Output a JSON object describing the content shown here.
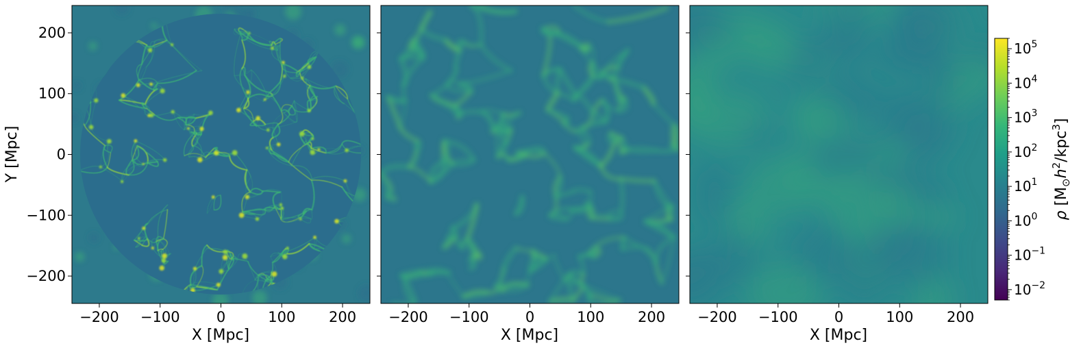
{
  "chart_data": [
    {
      "type": "heatmap",
      "panel": 1,
      "xlabel": "X [Mpc]",
      "ylabel": "Y [Mpc]",
      "xlim": [
        -245,
        245
      ],
      "ylim": [
        -245,
        245
      ],
      "x_ticks": [
        -200,
        -100,
        0,
        100,
        200
      ],
      "y_ticks": [
        -200,
        -100,
        0,
        100,
        200
      ],
      "x_tick_labels": [
        "−200",
        "−100",
        "0",
        "100",
        "200"
      ],
      "y_tick_labels": [
        "−200",
        "−100",
        "0",
        "100",
        "200"
      ],
      "description": "projected density; sharp cosmic-web filaments inside a circular region"
    },
    {
      "type": "heatmap",
      "panel": 2,
      "xlabel": "X [Mpc]",
      "ylabel": "",
      "xlim": [
        -245,
        245
      ],
      "ylim": [
        -245,
        245
      ],
      "x_ticks": [
        -200,
        -100,
        0,
        100,
        200
      ],
      "x_tick_labels": [
        "−200",
        "−100",
        "0",
        "100",
        "200"
      ],
      "description": "moderately smoothed density field"
    },
    {
      "type": "heatmap",
      "panel": 3,
      "xlabel": "X [Mpc]",
      "ylabel": "",
      "xlim": [
        -245,
        245
      ],
      "ylim": [
        -245,
        245
      ],
      "x_ticks": [
        -200,
        -100,
        0,
        100,
        200
      ],
      "x_tick_labels": [
        "−200",
        "−100",
        "0",
        "100",
        "200"
      ],
      "description": "heavily smoothed density field"
    }
  ],
  "colorbar": {
    "label_symbol": "ρ",
    "label_units_prefix": "[M",
    "label_units_sub": "⊙",
    "label_units_h": "h",
    "label_units_h_exp": "2",
    "label_units_mid": "/kpc",
    "label_units_kpc_exp": "3",
    "label_units_close": "]",
    "scale": "log",
    "range": [
      0.005,
      200000
    ],
    "colormap": "viridis",
    "ticks": [
      {
        "value": 0.01,
        "base": "10",
        "exp": "−2"
      },
      {
        "value": 0.1,
        "base": "10",
        "exp": "−1"
      },
      {
        "value": 1,
        "base": "10",
        "exp": "0"
      },
      {
        "value": 10,
        "base": "10",
        "exp": "1"
      },
      {
        "value": 100,
        "base": "10",
        "exp": "2"
      },
      {
        "value": 1000,
        "base": "10",
        "exp": "3"
      },
      {
        "value": 10000,
        "base": "10",
        "exp": "4"
      },
      {
        "value": 100000,
        "base": "10",
        "exp": "5"
      }
    ]
  },
  "colors": {
    "viridis_stops": [
      "#440154",
      "#482878",
      "#3e4989",
      "#31688e",
      "#26828e",
      "#1f9e89",
      "#35b779",
      "#6ece58",
      "#b5de2b",
      "#fde725"
    ],
    "field_base": "#2a7f8d",
    "field_dark": "#2b6a8c",
    "filament": "#3fb873",
    "filament_bright": "#9bd93c"
  }
}
